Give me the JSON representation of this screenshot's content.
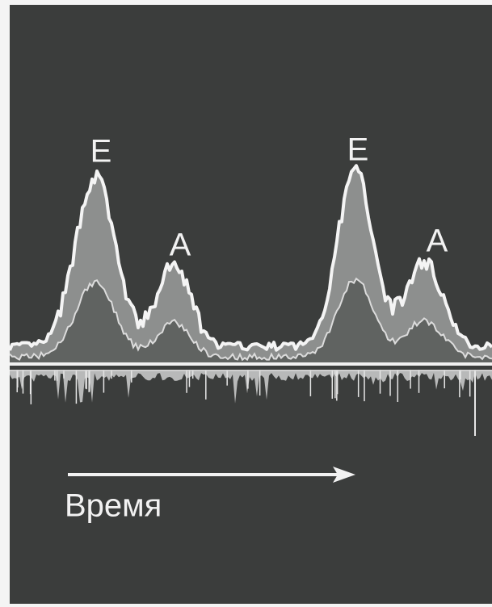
{
  "peaks": [
    "E",
    "A",
    "E",
    "A"
  ],
  "time_label": "Время"
}
